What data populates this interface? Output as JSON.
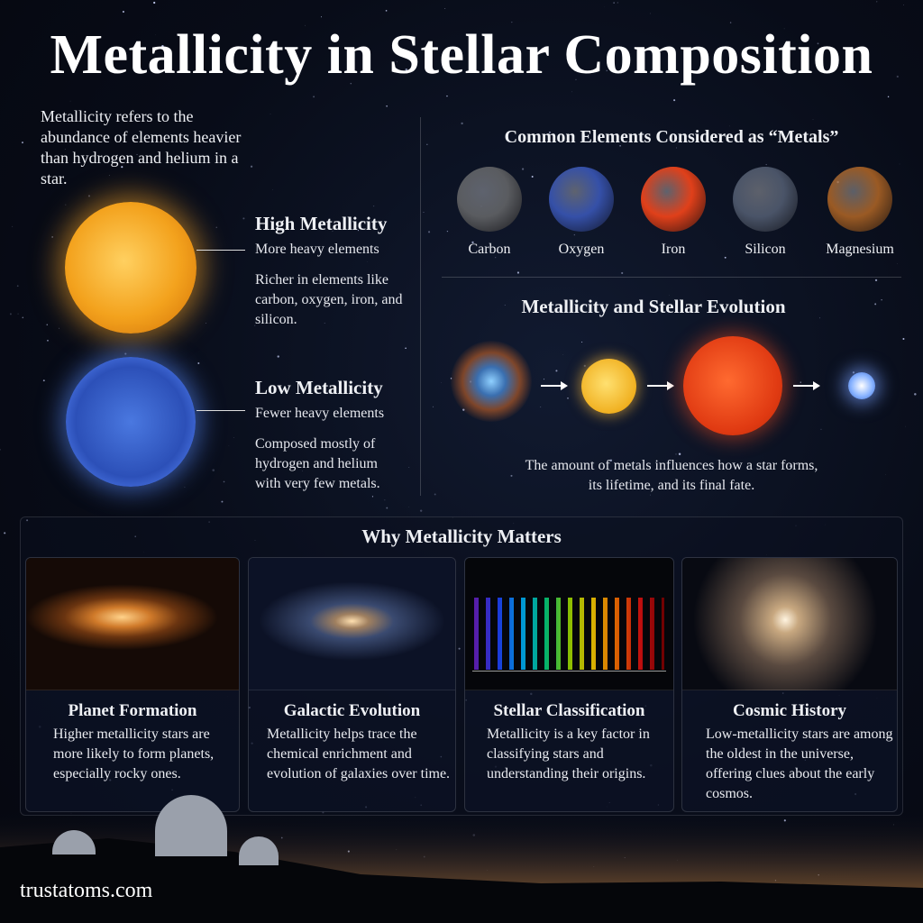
{
  "title": "Metallicity in Stellar Composition",
  "intro": "Metallicity refers to the abundance of elements heavier than hydrogen and helium in a star.",
  "high": {
    "heading": "High Metallicity",
    "subtitle": "More heavy elements",
    "text": "Richer in elements like carbon, oxygen, iron, and silicon.",
    "color": "#f3a21d"
  },
  "low": {
    "heading": "Low Metallicity",
    "subtitle": "Fewer heavy elements",
    "text": "Composed mostly of hydrogen and helium with very few metals.",
    "color": "#2c50b8"
  },
  "elements": {
    "heading": "Common Elements Considered as “Metals”",
    "items": [
      {
        "label": "Carbon",
        "color": "#5a5c60"
      },
      {
        "label": "Oxygen",
        "color": "#3550a8"
      },
      {
        "label": "Iron",
        "color": "#e0401a"
      },
      {
        "label": "Silicon",
        "color": "#4a5468"
      },
      {
        "label": "Magnesium",
        "color": "#9a5a24"
      }
    ]
  },
  "evolution": {
    "heading": "Metallicity and Stellar Evolution",
    "caption_line1": "The amount of metals influences how a star forms,",
    "caption_line2": "its lifetime, and its final fate."
  },
  "why": {
    "heading": "Why Metallicity Matters",
    "cards": [
      {
        "title": "Planet Formation",
        "text": "Higher metallicity stars are more likely to form planets, especially rocky ones.",
        "image": "spiral-galaxy-with-planets"
      },
      {
        "title": "Galactic Evolution",
        "text": "Metallicity helps trace the chemical enrichment and evolution of galaxies over time.",
        "image": "spiral-galaxy"
      },
      {
        "title": "Stellar Classification",
        "text": "Metallicity is a key factor in classifying stars and understanding their origins.",
        "image": "absorption-spectrum"
      },
      {
        "title": "Cosmic History",
        "text": "Low-metallicity stars are among the oldest in the universe, offering clues about the early cosmos.",
        "image": "globular-cluster"
      }
    ]
  },
  "footer": "trustatoms.com"
}
